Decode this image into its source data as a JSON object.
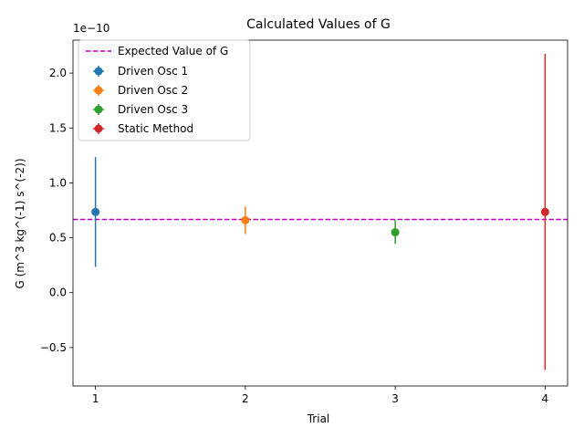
{
  "chart_data": {
    "type": "scatter",
    "title": "Calculated Values of G",
    "xlabel": "Trial",
    "ylabel": "G (m^3 kg^(-1) s^(-2))",
    "offset_label": "1e−10",
    "x_ticks": [
      1,
      2,
      3,
      4
    ],
    "x_tick_labels": [
      "1",
      "2",
      "3",
      "4"
    ],
    "xlim": [
      0.85,
      4.15
    ],
    "y_ticks": [
      -0.5,
      0.0,
      0.5,
      1.0,
      1.5,
      2.0
    ],
    "y_tick_labels": [
      "−0.5",
      "0.0",
      "0.5",
      "1.0",
      "1.5",
      "2.0"
    ],
    "ylim": [
      -0.85,
      2.3
    ],
    "y_scale_factor": "1e-10",
    "grid": false,
    "legend_position": "top-left",
    "reference_line": {
      "name": "Expected Value of G",
      "y": 0.667,
      "style": "dashed",
      "color": "#bf00bf"
    },
    "series": [
      {
        "name": "Driven Osc 1",
        "color": "#1f77b4",
        "x": 1,
        "y": 0.735,
        "err_low": 0.235,
        "err_high": 1.235
      },
      {
        "name": "Driven Osc 2",
        "color": "#ff7f0e",
        "x": 2,
        "y": 0.66,
        "err_low": 0.535,
        "err_high": 0.785
      },
      {
        "name": "Driven Osc 3",
        "color": "#2ca02c",
        "x": 3,
        "y": 0.55,
        "err_low": 0.445,
        "err_high": 0.665
      },
      {
        "name": "Static Method",
        "color": "#d62728",
        "x": 4,
        "y": 0.735,
        "err_low": -0.705,
        "err_high": 2.175
      }
    ]
  }
}
